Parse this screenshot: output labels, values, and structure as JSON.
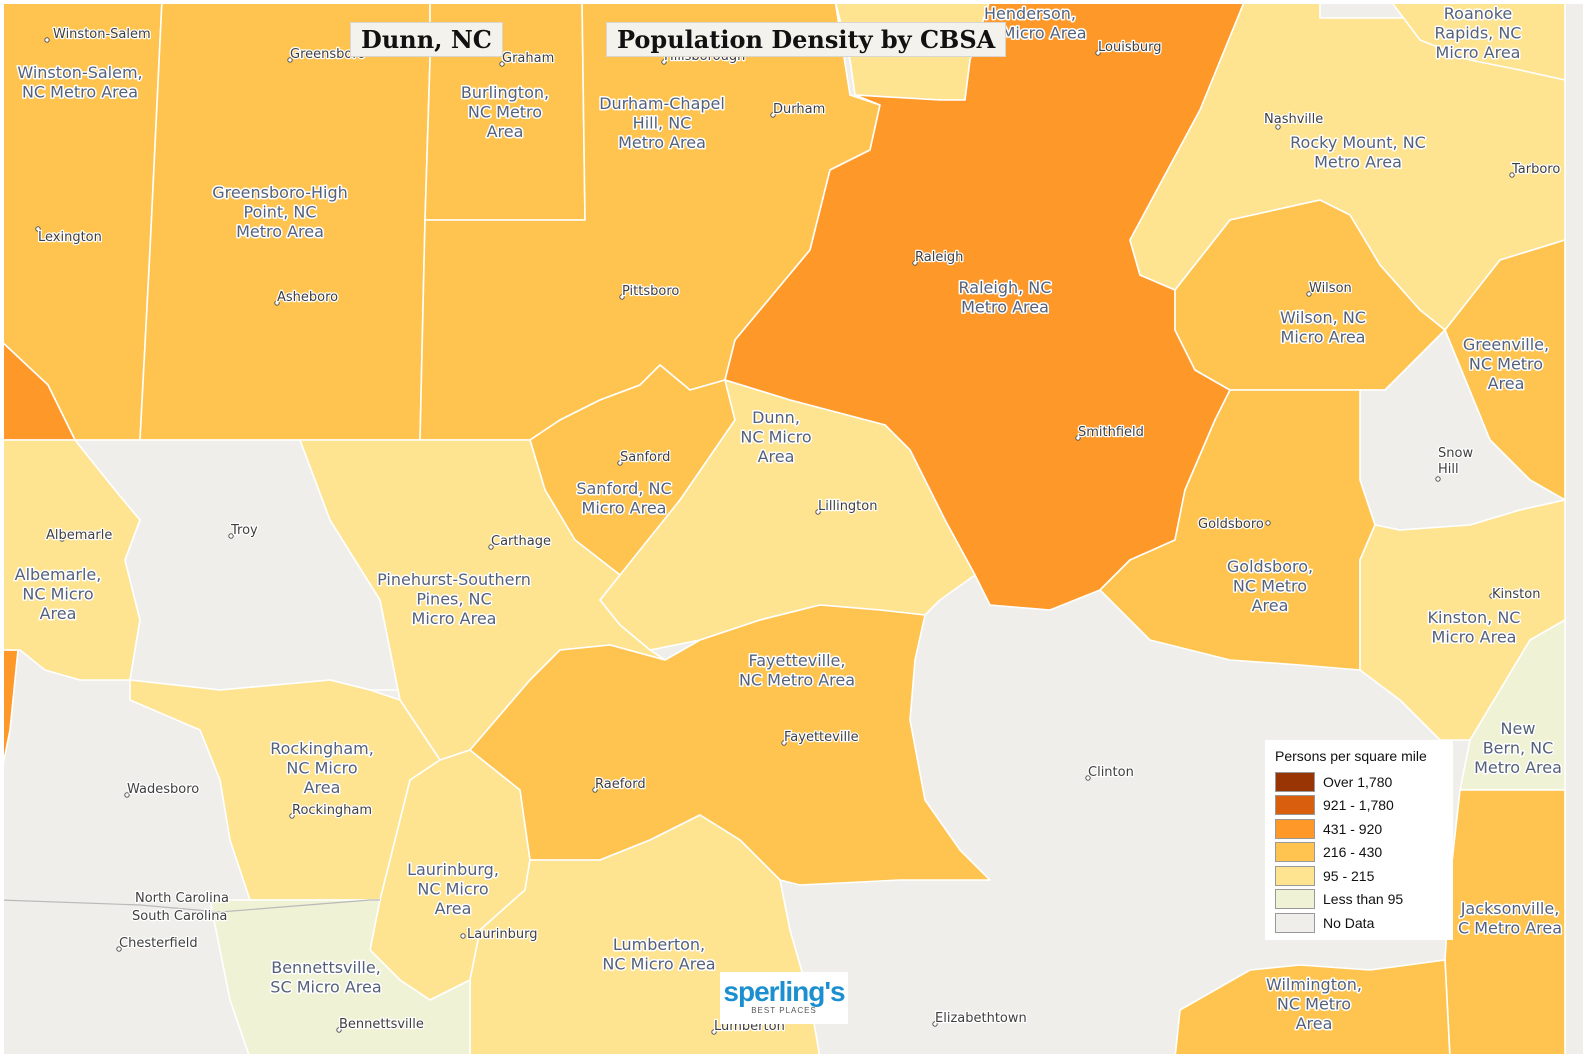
{
  "titles": {
    "place": "Dunn, NC",
    "map_title": "Population Density by CBSA"
  },
  "colors": {
    "over_1780": "#993404",
    "c921_1780": "#d95f0e",
    "c431_920": "#fe9929",
    "c216_430": "#fec44f",
    "c95_215": "#fee391",
    "lt95": "#f0f2d5",
    "nodata": "#efeeea"
  },
  "legend": {
    "title": "Persons per square mile",
    "items": [
      {
        "label": "Over 1,780",
        "color": "#993404"
      },
      {
        "label": "921 - 1,780",
        "color": "#d95f0e"
      },
      {
        "label": "431 - 920",
        "color": "#fe9929"
      },
      {
        "label": "216 - 430",
        "color": "#fec44f"
      },
      {
        "label": "95 - 215",
        "color": "#fee391"
      },
      {
        "label": "Less than 95",
        "color": "#f0f2d5"
      },
      {
        "label": "No Data",
        "color": "#efeeea"
      }
    ]
  },
  "regions": [
    {
      "id": "winston-salem",
      "class": "216-430",
      "label_lines": [
        "Winston-Salem,",
        "NC Metro Area"
      ]
    },
    {
      "id": "greensboro",
      "class": "216-430",
      "label_lines": [
        "Greensboro-High",
        "Point, NC",
        "Metro Area"
      ]
    },
    {
      "id": "burlington",
      "class": "216-430",
      "label_lines": [
        "Burlington,",
        "NC Metro",
        "Area"
      ]
    },
    {
      "id": "durham",
      "class": "216-430",
      "label_lines": [
        "Durham-Chapel",
        "Hill, NC",
        "Metro Area"
      ]
    },
    {
      "id": "henderson",
      "class": "95-215",
      "label_lines": [
        "Henderson,",
        "NC Micro Area"
      ]
    },
    {
      "id": "raleigh",
      "class": "431-920",
      "label_lines": [
        "Raleigh, NC",
        "Metro Area"
      ]
    },
    {
      "id": "rocky-mount",
      "class": "95-215",
      "label_lines": [
        "Rocky Mount, NC",
        "Metro Area"
      ]
    },
    {
      "id": "roanoke-rapids",
      "class": "95-215",
      "label_lines": [
        "Roanoke",
        "Rapids, NC",
        "Micro Area"
      ]
    },
    {
      "id": "wilson",
      "class": "216-430",
      "label_lines": [
        "Wilson, NC",
        "Micro Area"
      ]
    },
    {
      "id": "greenville",
      "class": "216-430",
      "label_lines": [
        "Greenville,",
        "NC Metro",
        "Area"
      ]
    },
    {
      "id": "sanford",
      "class": "216-430",
      "label_lines": [
        "Sanford, NC",
        "Micro Area"
      ]
    },
    {
      "id": "dunn",
      "class": "95-215",
      "label_lines": [
        "Dunn,",
        "NC Micro",
        "Area"
      ]
    },
    {
      "id": "albemarle",
      "class": "95-215",
      "label_lines": [
        "Albemarle,",
        "NC Micro",
        "Area"
      ]
    },
    {
      "id": "pinehurst",
      "class": "95-215",
      "label_lines": [
        "Pinehurst-Southern",
        "Pines, NC",
        "Micro Area"
      ]
    },
    {
      "id": "goldsboro",
      "class": "216-430",
      "label_lines": [
        "Goldsboro,",
        "NC Metro",
        "Area"
      ]
    },
    {
      "id": "kinston",
      "class": "95-215",
      "label_lines": [
        "Kinston, NC",
        "Micro Area"
      ]
    },
    {
      "id": "new-bern",
      "class": "lt95",
      "label_lines": [
        "New",
        "Bern, NC",
        "Metro Area"
      ]
    },
    {
      "id": "rockingham",
      "class": "95-215",
      "label_lines": [
        "Rockingham,",
        "NC Micro",
        "Area"
      ]
    },
    {
      "id": "fayetteville",
      "class": "216-430",
      "label_lines": [
        "Fayetteville,",
        "NC Metro Area"
      ]
    },
    {
      "id": "laurinburg",
      "class": "95-215",
      "label_lines": [
        "Laurinburg,",
        "NC Micro",
        "Area"
      ]
    },
    {
      "id": "lumberton",
      "class": "95-215",
      "label_lines": [
        "Lumberton,",
        "NC Micro Area"
      ]
    },
    {
      "id": "bennettsville",
      "class": "lt95",
      "label_lines": [
        "Bennettsville,",
        "SC Micro Area"
      ]
    },
    {
      "id": "wilmington",
      "class": "216-430",
      "label_lines": [
        "Wilmington,",
        "NC Metro",
        "Area"
      ]
    },
    {
      "id": "jacksonville",
      "class": "216-430",
      "label_lines": [
        "Jacksonville,",
        "C Metro Area"
      ]
    }
  ],
  "cities": [
    "Winston-Salem",
    "Greensboro",
    "Graham",
    "Hillsborough",
    "Durham",
    "Louisburg",
    "Nashville",
    "Tarboro",
    "Lexington",
    "Raleigh",
    "Asheboro",
    "Pittsboro",
    "Wilson",
    "Smithfield",
    "Sanford",
    "Snow",
    "Hill",
    "Albemarle",
    "Troy",
    "Carthage",
    "Lillington",
    "Goldsboro",
    "Kinston",
    "Fayetteville",
    "Clinton",
    "Wadesboro",
    "Raeford",
    "Rockingham",
    "Laurinburg",
    "Chesterfield",
    "Bennettsville",
    "Lumberton",
    "Elizabethtown"
  ],
  "state_labels": {
    "north": "North Carolina",
    "south": "South Carolina"
  },
  "logo": {
    "main": "sperling's",
    "sub": "BEST PLACES"
  }
}
